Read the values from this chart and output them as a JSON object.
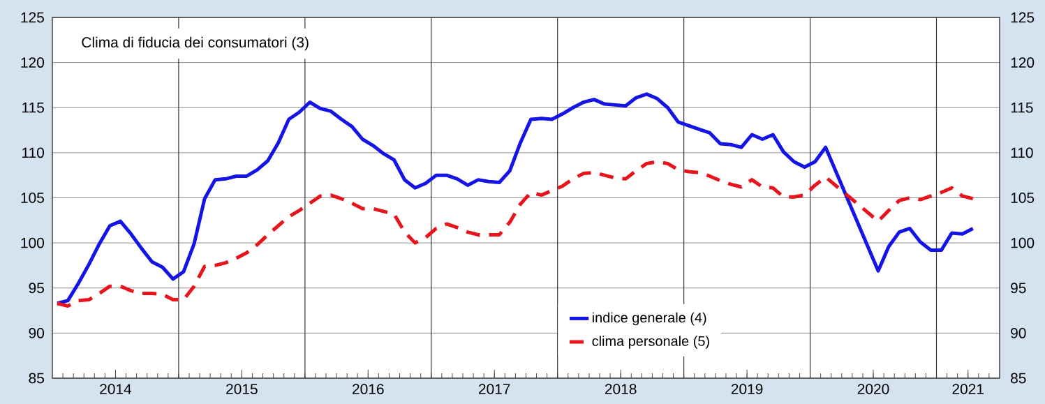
{
  "chart_data": {
    "type": "line",
    "annotations": [
      "Clima di fiducia dei consumatori (3)"
    ],
    "x": [
      "2014-01-15",
      "2014-02-15",
      "2014-03-15",
      "2014-04-15",
      "2014-05-15",
      "2014-06-15",
      "2014-07-15",
      "2014-08-15",
      "2014-09-15",
      "2014-10-15",
      "2014-11-15",
      "2014-12-15",
      "2015-01-15",
      "2015-02-15",
      "2015-03-15",
      "2015-04-15",
      "2015-05-15",
      "2015-06-15",
      "2015-07-15",
      "2015-08-15",
      "2015-09-15",
      "2015-10-15",
      "2015-11-15",
      "2015-12-15",
      "2016-01-15",
      "2016-02-15",
      "2016-03-15",
      "2016-04-15",
      "2016-05-15",
      "2016-06-15",
      "2016-07-15",
      "2016-08-15",
      "2016-09-15",
      "2016-10-15",
      "2016-11-15",
      "2016-12-15",
      "2017-01-15",
      "2017-02-15",
      "2017-03-15",
      "2017-04-15",
      "2017-05-15",
      "2017-06-15",
      "2017-07-15",
      "2017-08-15",
      "2017-09-15",
      "2017-10-15",
      "2017-11-15",
      "2017-12-15",
      "2018-01-15",
      "2018-02-15",
      "2018-03-15",
      "2018-04-15",
      "2018-05-15",
      "2018-06-15",
      "2018-07-15",
      "2018-08-15",
      "2018-09-15",
      "2018-10-15",
      "2018-11-15",
      "2018-12-15",
      "2019-01-15",
      "2019-02-15",
      "2019-03-15",
      "2019-04-15",
      "2019-05-15",
      "2019-06-15",
      "2019-07-15",
      "2019-08-15",
      "2019-09-15",
      "2019-10-15",
      "2019-11-15",
      "2019-12-15",
      "2020-01-15",
      "2020-02-15",
      "2020-07-15",
      "2020-08-15",
      "2020-09-15",
      "2020-10-15",
      "2020-11-15",
      "2020-12-15",
      "2021-01-15",
      "2021-02-15",
      "2021-03-15",
      "2021-04-15"
    ],
    "series": [
      {
        "name": "indice generale (4)",
        "color": "#1414e6",
        "line_style": "solid",
        "values": [
          93.3,
          93.6,
          95.5,
          97.6,
          99.9,
          101.9,
          102.4,
          101.0,
          99.4,
          97.9,
          97.3,
          96.0,
          96.8,
          99.9,
          104.9,
          107.0,
          107.1,
          107.4,
          107.4,
          108.1,
          109.1,
          111.1,
          113.7,
          114.5,
          115.6,
          114.9,
          114.6,
          113.7,
          112.9,
          111.5,
          110.8,
          109.9,
          109.2,
          107.0,
          106.1,
          106.6,
          107.5,
          107.5,
          107.1,
          106.4,
          107.0,
          106.8,
          106.7,
          108.0,
          111.1,
          113.7,
          113.8,
          113.7,
          114.3,
          115.0,
          115.6,
          115.9,
          115.4,
          115.3,
          115.2,
          116.1,
          116.5,
          116.0,
          115.0,
          113.4,
          113.0,
          112.6,
          112.2,
          111.0,
          110.9,
          110.6,
          112.0,
          111.5,
          112.0,
          110.1,
          109.0,
          108.4,
          109.0,
          110.6,
          96.9,
          99.6,
          101.2,
          101.6,
          100.1,
          99.2,
          99.2,
          101.1,
          101.0,
          101.6
        ]
      },
      {
        "name": "clima personale (5)",
        "color": "#e8141c",
        "line_style": "dashed",
        "values": [
          93.3,
          93.0,
          93.6,
          93.7,
          94.4,
          95.2,
          95.2,
          94.7,
          94.4,
          94.4,
          94.3,
          93.7,
          93.7,
          95.2,
          97.4,
          97.5,
          97.8,
          98.3,
          98.9,
          99.8,
          100.9,
          101.9,
          102.9,
          103.6,
          104.4,
          105.2,
          105.3,
          104.9,
          104.4,
          103.8,
          103.8,
          103.5,
          103.2,
          101.2,
          100.0,
          100.6,
          101.6,
          102.1,
          101.7,
          101.2,
          100.9,
          100.9,
          100.9,
          102.3,
          104.3,
          105.6,
          105.3,
          105.8,
          106.3,
          107.1,
          107.7,
          107.8,
          107.5,
          107.2,
          107.1,
          108.0,
          108.8,
          109.0,
          108.8,
          108.1,
          107.9,
          107.8,
          107.4,
          106.9,
          106.5,
          106.2,
          107.0,
          106.2,
          106.1,
          105.1,
          105.1,
          105.3,
          106.4,
          107.3,
          102.4,
          103.6,
          104.7,
          105.0,
          104.8,
          105.2,
          105.6,
          106.1,
          105.2,
          104.9
        ]
      }
    ],
    "xlim": [
      "2014-01",
      "2021-07"
    ],
    "xticks": [
      {
        "value": "2014-07",
        "label": "2014"
      },
      {
        "value": "2015-07",
        "label": "2015"
      },
      {
        "value": "2016-07",
        "label": "2016"
      },
      {
        "value": "2017-07",
        "label": "2017"
      },
      {
        "value": "2018-07",
        "label": "2018"
      },
      {
        "value": "2019-07",
        "label": "2019"
      },
      {
        "value": "2020-07",
        "label": "2020"
      },
      {
        "value": "2021-04",
        "label": "2021"
      }
    ],
    "ylim": [
      85,
      125
    ],
    "yticks": [
      85,
      90,
      95,
      100,
      105,
      110,
      115,
      120,
      125
    ],
    "y2lim": [
      85,
      125
    ],
    "y2ticks": [
      85,
      90,
      95,
      100,
      105,
      110,
      115,
      120,
      125
    ],
    "ref_lines": [
      {
        "axis": "x",
        "value": "2015-01",
        "color": "#333333"
      },
      {
        "axis": "x",
        "value": "2016-01",
        "color": "#333333"
      },
      {
        "axis": "x",
        "value": "2017-01",
        "color": "#333333"
      },
      {
        "axis": "x",
        "value": "2018-01",
        "color": "#333333"
      },
      {
        "axis": "x",
        "value": "2019-01",
        "color": "#333333"
      },
      {
        "axis": "x",
        "value": "2020-01",
        "color": "#333333"
      },
      {
        "axis": "x",
        "value": "2021-01",
        "color": "#333333"
      }
    ],
    "grid": "y",
    "legend": "bottom"
  }
}
